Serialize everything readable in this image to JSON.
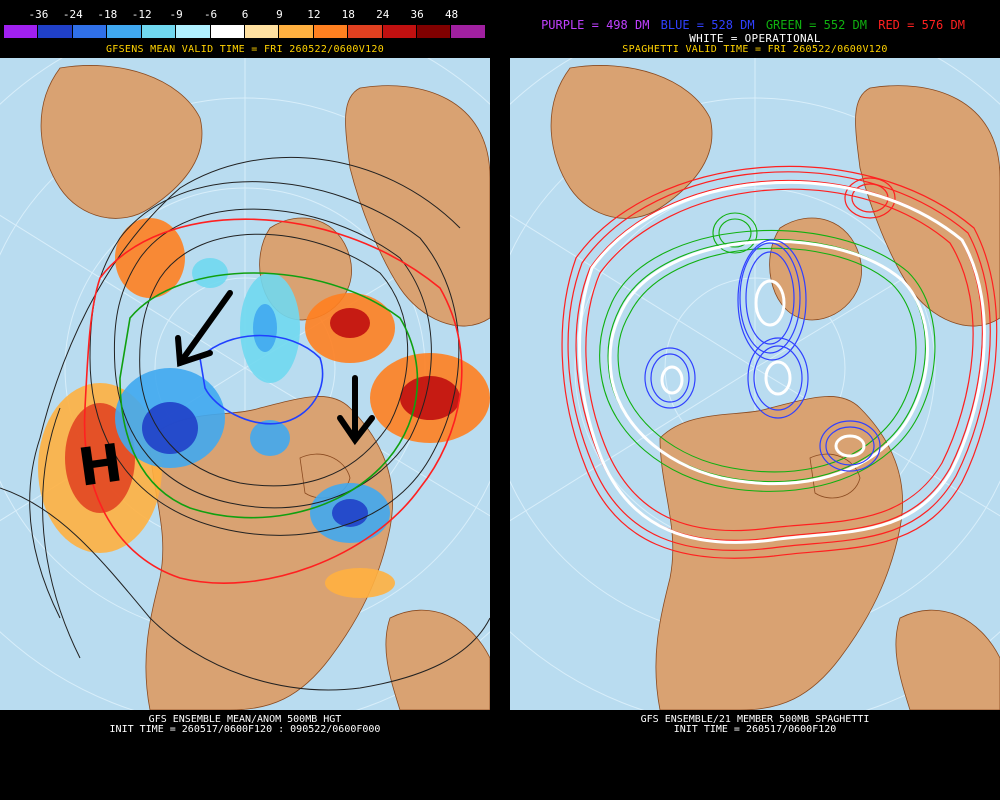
{
  "left": {
    "colorbar_labels": [
      "-36",
      "-24",
      "-18",
      "-12",
      "-9",
      "-6",
      "6",
      "9",
      "12",
      "18",
      "24",
      "36",
      "48"
    ],
    "colorbar_colors": [
      "#a020f0",
      "#2040c8",
      "#3070e8",
      "#40a8f0",
      "#70d8f0",
      "#b0f0ff",
      "#ffffff",
      "#ffe0a0",
      "#ffb040",
      "#ff8020",
      "#e04020",
      "#c01010",
      "#800000",
      "#a020a0"
    ],
    "valid_line": "GFSENS MEAN VALID TIME = FRI 260522/0600V120",
    "bottom_line1": "GFS ENSEMBLE MEAN/ANOM 500MB HGT",
    "bottom_line2": "INIT TIME = 260517/0600F120 : 090522/0600F000",
    "annotation_letter": "H"
  },
  "right": {
    "legend_purple": "PURPLE = 498 DM",
    "legend_blue": "BLUE = 528 DM",
    "legend_green": "GREEN = 552 DM",
    "legend_red": "RED = 576 DM",
    "legend_white": "WHITE = OPERATIONAL",
    "valid_line": "SPAGHETTI VALID TIME = FRI 260522/0600V120",
    "bottom_line1": "GFS ENSEMBLE/21 MEMBER 500MB SPAGHETTI",
    "bottom_line2": "INIT TIME = 260517/0600F120",
    "colors": {
      "purple": "#c040ff",
      "blue": "#3040ff",
      "green": "#10b010",
      "red": "#ff2020",
      "white": "#ffffff"
    }
  }
}
